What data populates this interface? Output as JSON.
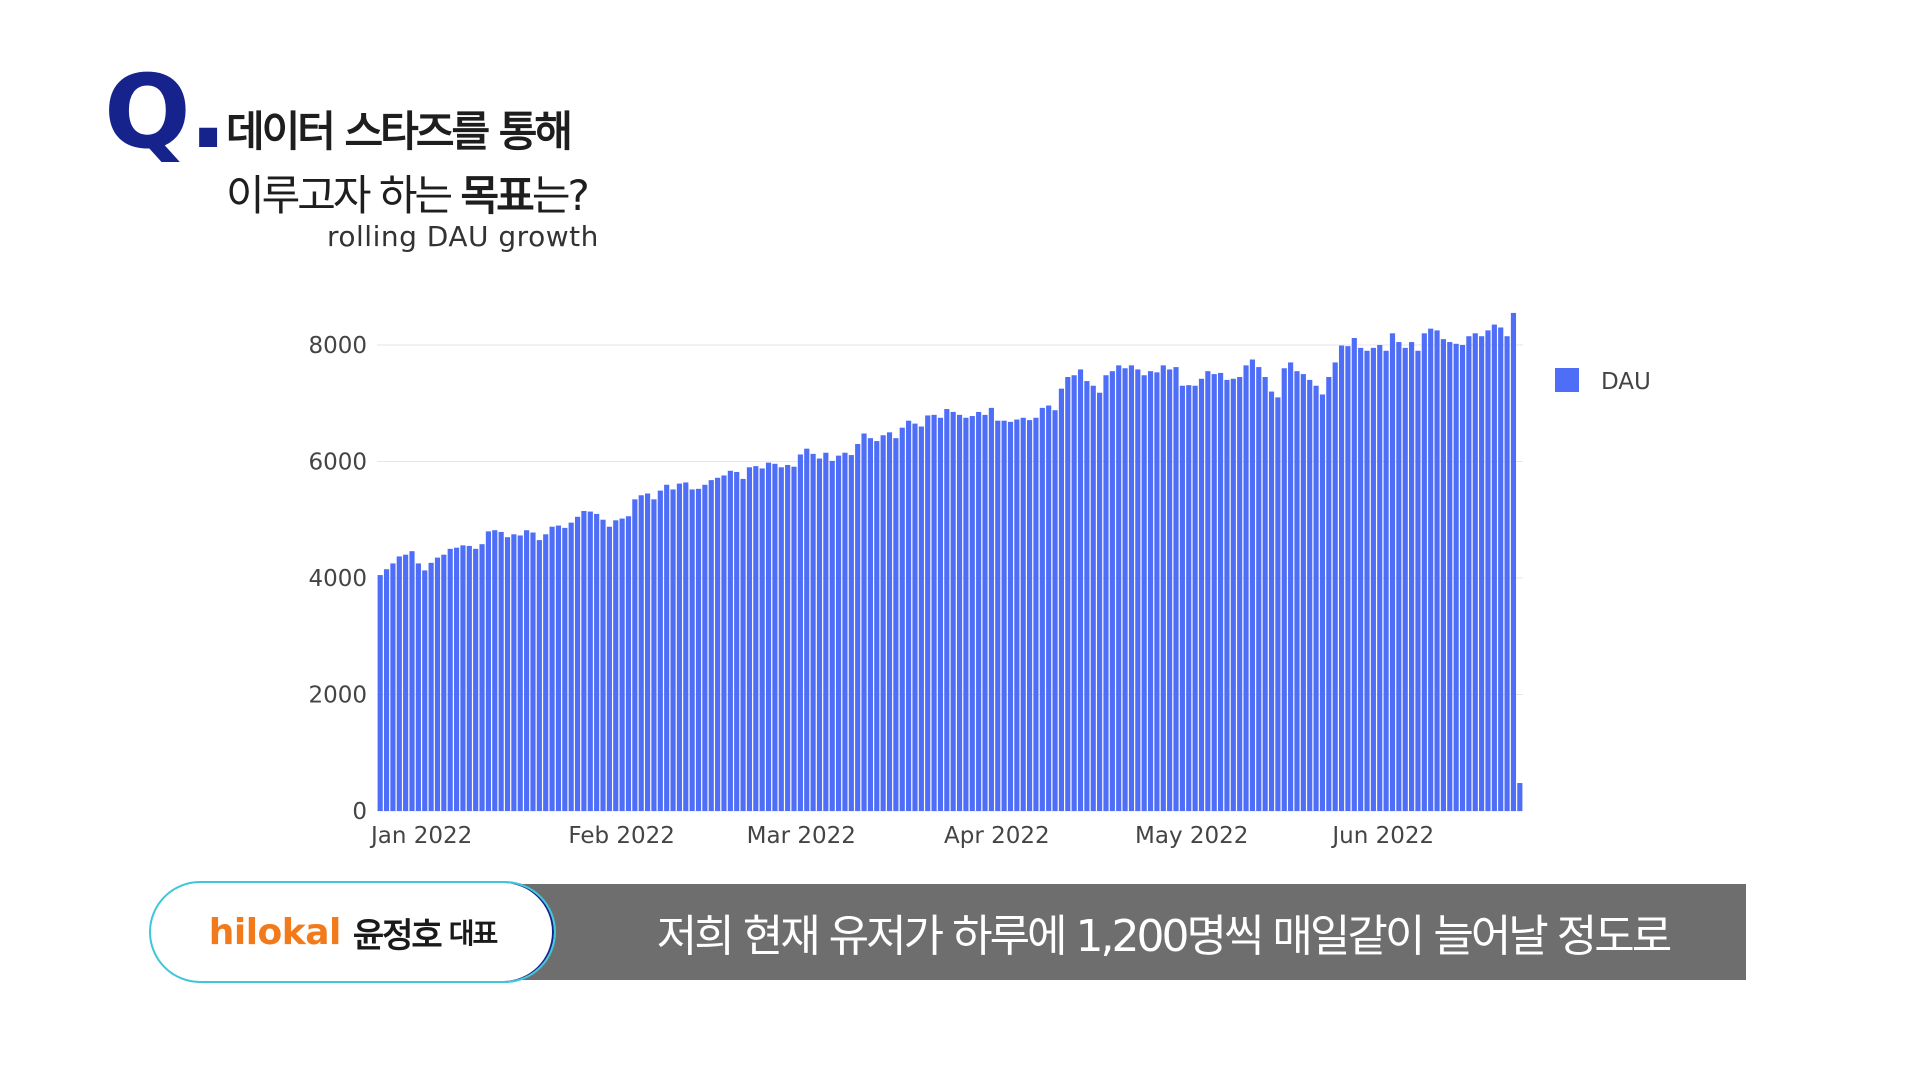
{
  "question": {
    "mark": "Q.",
    "line1": "데이터 스타즈를 통해",
    "line2_prefix": "이루고자 하는 ",
    "line2_bold": "목표",
    "line2_suffix": "는?"
  },
  "chart_subtitle": "rolling DAU growth",
  "chart_data": {
    "type": "bar",
    "title": "",
    "xlabel": "",
    "ylabel": "",
    "ylim": [
      0,
      8600
    ],
    "yticks": [
      0,
      2000,
      4000,
      6000,
      8000
    ],
    "ytick_labels": [
      "0",
      "2000",
      "4000",
      "6000",
      "8000"
    ],
    "xtick_labels": [
      "Jan 2022",
      "Feb 2022",
      "Mar 2022",
      "Apr 2022",
      "May 2022",
      "Jun 2022"
    ],
    "xtick_day_index": [
      0,
      31,
      59,
      90,
      120,
      151
    ],
    "grid": true,
    "legend": "right",
    "bar_color": "#4f6ef7",
    "series": [
      {
        "name": "DAU",
        "start": "2022-01-01",
        "values": [
          4050,
          4150,
          4250,
          4370,
          4400,
          4460,
          4250,
          4130,
          4260,
          4350,
          4400,
          4500,
          4520,
          4560,
          4550,
          4500,
          4580,
          4800,
          4820,
          4790,
          4700,
          4750,
          4730,
          4820,
          4780,
          4650,
          4750,
          4880,
          4900,
          4860,
          4950,
          5050,
          5150,
          5140,
          5100,
          5000,
          4880,
          4990,
          5020,
          5060,
          5350,
          5420,
          5450,
          5350,
          5500,
          5600,
          5520,
          5620,
          5640,
          5520,
          5530,
          5600,
          5680,
          5720,
          5760,
          5840,
          5820,
          5700,
          5900,
          5920,
          5880,
          5980,
          5960,
          5900,
          5940,
          5910,
          6120,
          6220,
          6130,
          6050,
          6150,
          6010,
          6100,
          6150,
          6110,
          6300,
          6480,
          6400,
          6350,
          6450,
          6500,
          6400,
          6580,
          6700,
          6650,
          6600,
          6790,
          6800,
          6750,
          6900,
          6850,
          6800,
          6750,
          6780,
          6850,
          6800,
          6920,
          6700,
          6700,
          6680,
          6720,
          6750,
          6710,
          6750,
          6920,
          6960,
          6880,
          7250,
          7450,
          7480,
          7580,
          7380,
          7300,
          7180,
          7480,
          7550,
          7650,
          7600,
          7650,
          7580,
          7480,
          7550,
          7530,
          7650,
          7580,
          7620,
          7300,
          7310,
          7300,
          7420,
          7550,
          7500,
          7520,
          7400,
          7420,
          7450,
          7650,
          7750,
          7620,
          7450,
          7200,
          7100,
          7600,
          7700,
          7550,
          7500,
          7400,
          7300,
          7150,
          7450,
          7700,
          7990,
          7980,
          8120,
          7950,
          7900,
          7950,
          8000,
          7900,
          8200,
          8050,
          7950,
          8050,
          7900,
          8200,
          8280,
          8250,
          8100,
          8050,
          8020,
          8000,
          8150,
          8200,
          8150,
          8250,
          8350,
          8300,
          8150,
          8550,
          480
        ]
      }
    ]
  },
  "footer": {
    "brand": "hilokal",
    "speaker_name": "윤정호",
    "speaker_role": "대표",
    "caption": "저희 현재 유저가 하루에 1,200명씩 매일같이 늘어날 정도로"
  }
}
